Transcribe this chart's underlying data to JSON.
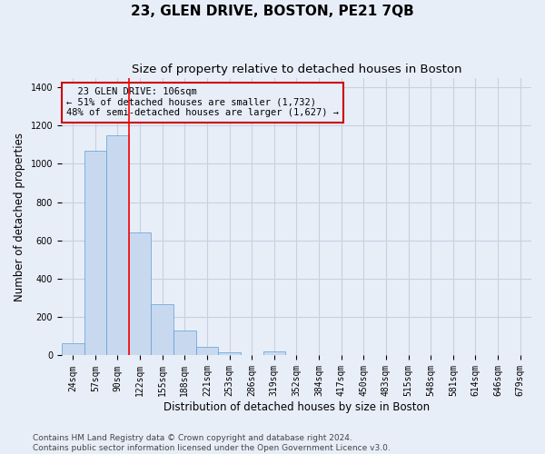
{
  "title": "23, GLEN DRIVE, BOSTON, PE21 7QB",
  "subtitle": "Size of property relative to detached houses in Boston",
  "xlabel": "Distribution of detached houses by size in Boston",
  "ylabel": "Number of detached properties",
  "bar_categories": [
    "24sqm",
    "57sqm",
    "90sqm",
    "122sqm",
    "155sqm",
    "188sqm",
    "221sqm",
    "253sqm",
    "286sqm",
    "319sqm",
    "352sqm",
    "384sqm",
    "417sqm",
    "450sqm",
    "483sqm",
    "515sqm",
    "548sqm",
    "581sqm",
    "614sqm",
    "646sqm",
    "679sqm"
  ],
  "bar_values": [
    65,
    1070,
    1150,
    640,
    270,
    130,
    45,
    15,
    0,
    20,
    0,
    0,
    0,
    0,
    0,
    0,
    0,
    0,
    0,
    0,
    0
  ],
  "bar_color": "#c8d9ef",
  "bar_edge_color": "#5a9fd4",
  "red_line_x": 2.5,
  "annotation_text": "  23 GLEN DRIVE: 106sqm\n← 51% of detached houses are smaller (1,732)\n48% of semi-detached houses are larger (1,627) →",
  "annotation_box_color": "#cc0000",
  "ylim": [
    0,
    1450
  ],
  "yticks": [
    0,
    200,
    400,
    600,
    800,
    1000,
    1200,
    1400
  ],
  "footer_text": "Contains HM Land Registry data © Crown copyright and database right 2024.\nContains public sector information licensed under the Open Government Licence v3.0.",
  "background_color": "#e8eef8",
  "grid_color": "#c8cfe0",
  "title_fontsize": 11,
  "subtitle_fontsize": 9.5,
  "axis_label_fontsize": 8.5,
  "tick_fontsize": 7,
  "annotation_fontsize": 7.5,
  "footer_fontsize": 6.5
}
